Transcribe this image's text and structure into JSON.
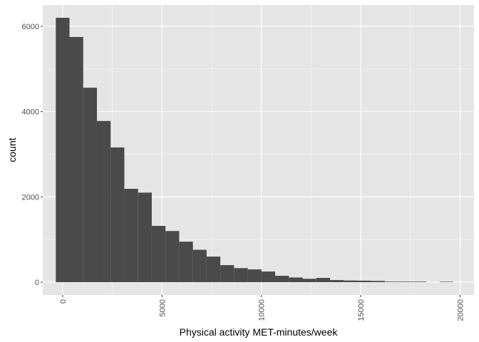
{
  "chart_data": {
    "type": "bar",
    "xlabel": "Physical activity MET-minutes/week",
    "ylabel": "count",
    "xlim": [
      -1000,
      20700
    ],
    "ylim": [
      -300,
      6500
    ],
    "x_ticks": [
      0,
      5000,
      10000,
      15000,
      20000
    ],
    "x_tick_labels": [
      "0",
      "5000",
      "10000",
      "15000",
      "20000"
    ],
    "y_ticks": [
      0,
      2000,
      4000,
      6000
    ],
    "y_tick_labels": [
      "0",
      "2000",
      "4000",
      "6000"
    ],
    "x_tick_label_rotation": -90,
    "grid": true,
    "bin_width": 690,
    "bins": [
      {
        "x0": -345,
        "x1": 345,
        "count": 6200
      },
      {
        "x0": 345,
        "x1": 1035,
        "count": 5750
      },
      {
        "x0": 1035,
        "x1": 1725,
        "count": 4560
      },
      {
        "x0": 1725,
        "x1": 2415,
        "count": 3780
      },
      {
        "x0": 2415,
        "x1": 3105,
        "count": 3160
      },
      {
        "x0": 3105,
        "x1": 3795,
        "count": 2190
      },
      {
        "x0": 3795,
        "x1": 4485,
        "count": 2100
      },
      {
        "x0": 4485,
        "x1": 5175,
        "count": 1320
      },
      {
        "x0": 5175,
        "x1": 5865,
        "count": 1200
      },
      {
        "x0": 5865,
        "x1": 6555,
        "count": 950
      },
      {
        "x0": 6555,
        "x1": 7245,
        "count": 760
      },
      {
        "x0": 7245,
        "x1": 7935,
        "count": 600
      },
      {
        "x0": 7935,
        "x1": 8625,
        "count": 400
      },
      {
        "x0": 8625,
        "x1": 9315,
        "count": 330
      },
      {
        "x0": 9315,
        "x1": 10005,
        "count": 300
      },
      {
        "x0": 10005,
        "x1": 10695,
        "count": 250
      },
      {
        "x0": 10695,
        "x1": 11385,
        "count": 150
      },
      {
        "x0": 11385,
        "x1": 12075,
        "count": 110
      },
      {
        "x0": 12075,
        "x1": 12765,
        "count": 80
      },
      {
        "x0": 12765,
        "x1": 13455,
        "count": 100
      },
      {
        "x0": 13455,
        "x1": 14145,
        "count": 50
      },
      {
        "x0": 14145,
        "x1": 14835,
        "count": 40
      },
      {
        "x0": 14835,
        "x1": 15525,
        "count": 35
      },
      {
        "x0": 15525,
        "x1": 16215,
        "count": 30
      },
      {
        "x0": 16215,
        "x1": 16905,
        "count": 12
      },
      {
        "x0": 16905,
        "x1": 17595,
        "count": 12
      },
      {
        "x0": 17595,
        "x1": 18285,
        "count": 12
      },
      {
        "x0": 18285,
        "x1": 18975,
        "count": 0
      },
      {
        "x0": 18975,
        "x1": 19665,
        "count": 10
      }
    ],
    "colors": {
      "panel_background": "#e5e5e5",
      "grid_major": "#ffffff",
      "bar_fill": "#4a4a4a",
      "tick_label": "#4d4d4d"
    }
  }
}
